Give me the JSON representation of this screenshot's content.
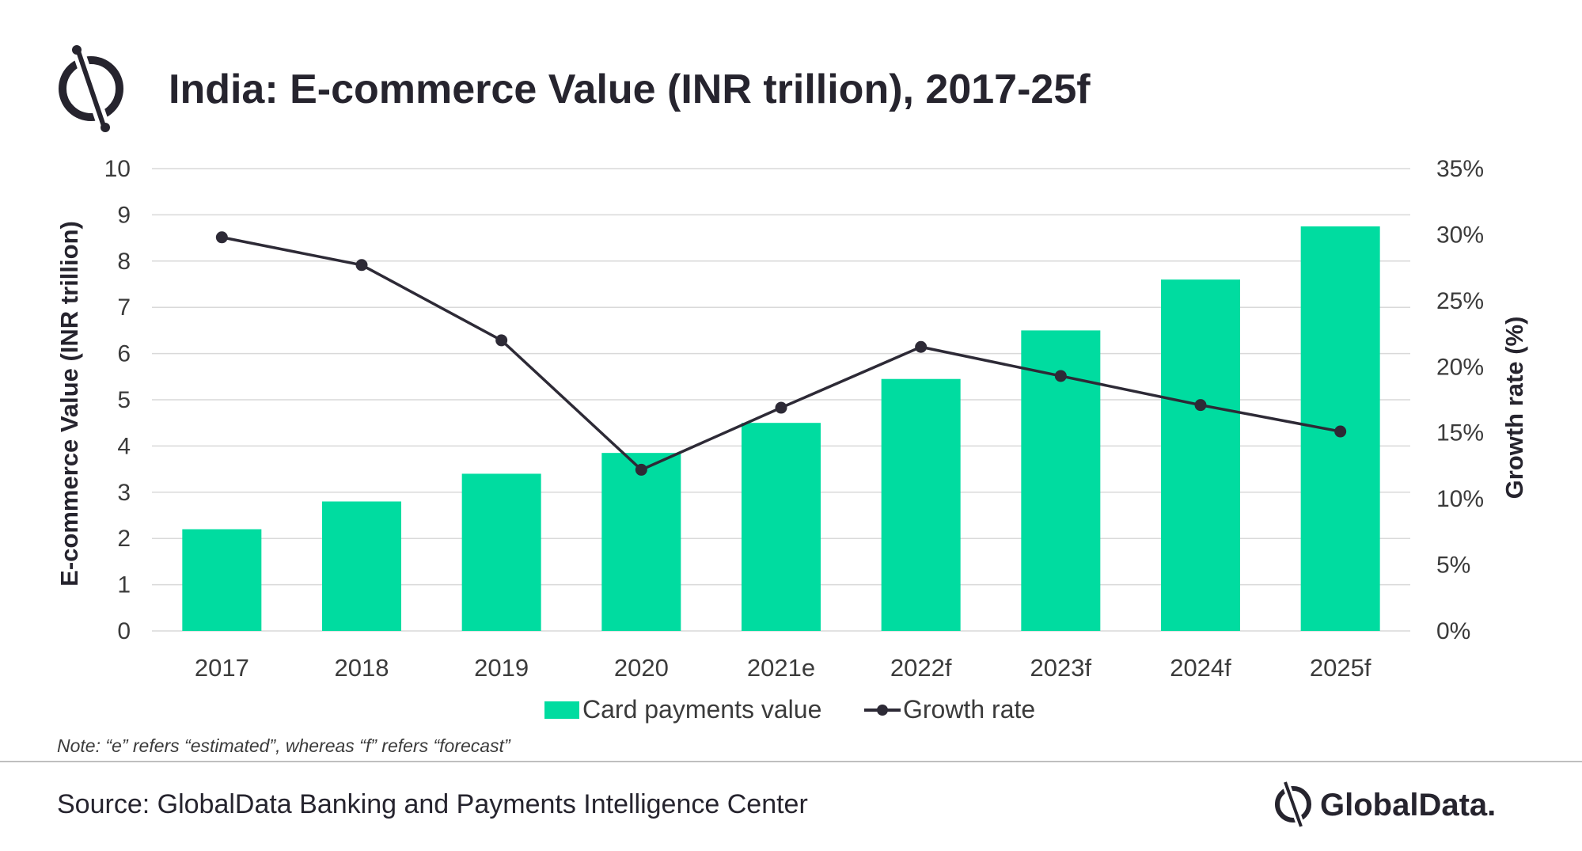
{
  "title": "India: E-commerce Value (INR trillion), 2017-25f",
  "note": "Note: “e” refers “estimated”, whereas “f” refers “forecast”",
  "source": "Source: GlobalData Banking and Payments Intelligence Center",
  "brand": "GlobalData.",
  "colors": {
    "bar": "#00dca0",
    "line": "#2d2a36",
    "grid": "#d9d9d9",
    "text": "#3b3b3b",
    "title": "#26242e"
  },
  "chart_data": {
    "type": "bar",
    "categories": [
      "2017",
      "2018",
      "2019",
      "2020",
      "2021e",
      "2022f",
      "2023f",
      "2024f",
      "2025f"
    ],
    "series": [
      {
        "name": "Card payments value",
        "type": "bar",
        "axis": "left",
        "values": [
          2.2,
          2.8,
          3.4,
          3.85,
          4.5,
          5.45,
          6.5,
          7.6,
          8.75
        ]
      },
      {
        "name": "Growth rate",
        "type": "line",
        "axis": "right",
        "values": [
          29.8,
          27.7,
          22.0,
          12.2,
          16.9,
          21.5,
          19.3,
          17.1,
          15.1
        ]
      }
    ],
    "ylabel": "E-commerce Value (INR trillion)",
    "ylim": [
      0,
      10
    ],
    "yticks": [
      "0",
      "1",
      "2",
      "3",
      "4",
      "5",
      "6",
      "7",
      "8",
      "9",
      "10"
    ],
    "y2label": "Growth rate (%)",
    "y2lim": [
      0,
      35
    ],
    "y2ticks": [
      "0%",
      "5%",
      "10%",
      "15%",
      "20%",
      "25%",
      "30%",
      "35%"
    ],
    "grid": true,
    "legend": "bottom"
  }
}
